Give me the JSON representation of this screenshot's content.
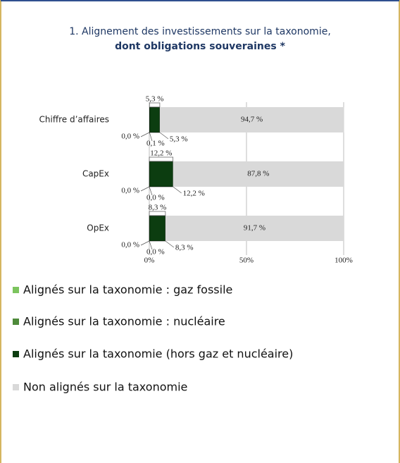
{
  "chart_data": {
    "type": "stacked-bar-horizontal",
    "title": "1. Alignement des investissements sur la taxonomie,",
    "subtitle": "dont obligations souveraines *",
    "categories": [
      "Chiffre d’affaires",
      "CapEx",
      "OpEx"
    ],
    "series": [
      {
        "name": "Alignés sur la taxonomie : gaz fossile",
        "color": "#7cc45e",
        "values": [
          0.0,
          0.0,
          0.0
        ],
        "value_labels": [
          "0,0 %",
          "0,0 %",
          "0,0 %"
        ]
      },
      {
        "name": "Alignés sur la taxonomie : nucléaire",
        "color": "#4e8a3a",
        "values": [
          0.1,
          0.0,
          0.0
        ],
        "value_labels": [
          "0,1 %",
          "0,0 %",
          "0,0 %"
        ]
      },
      {
        "name": "Alignés sur la taxonomie (hors gaz et nucléaire)",
        "color": "#0c3d10",
        "values": [
          5.3,
          12.2,
          8.3
        ],
        "value_labels": [
          "5,3 %",
          "12,2 %",
          "8,3 %"
        ]
      },
      {
        "name": "Non alignés sur la taxonomie",
        "color": "#d9d9d9",
        "values": [
          94.7,
          87.8,
          91.7
        ],
        "value_labels": [
          "94,7 %",
          "87,8 %",
          "91,7 %"
        ]
      }
    ],
    "xlim": [
      0,
      100
    ],
    "xticks": [
      {
        "value": 0,
        "label": "0%"
      },
      {
        "value": 50,
        "label": "50%"
      },
      {
        "value": 100,
        "label": "100%"
      }
    ],
    "grid": true
  }
}
